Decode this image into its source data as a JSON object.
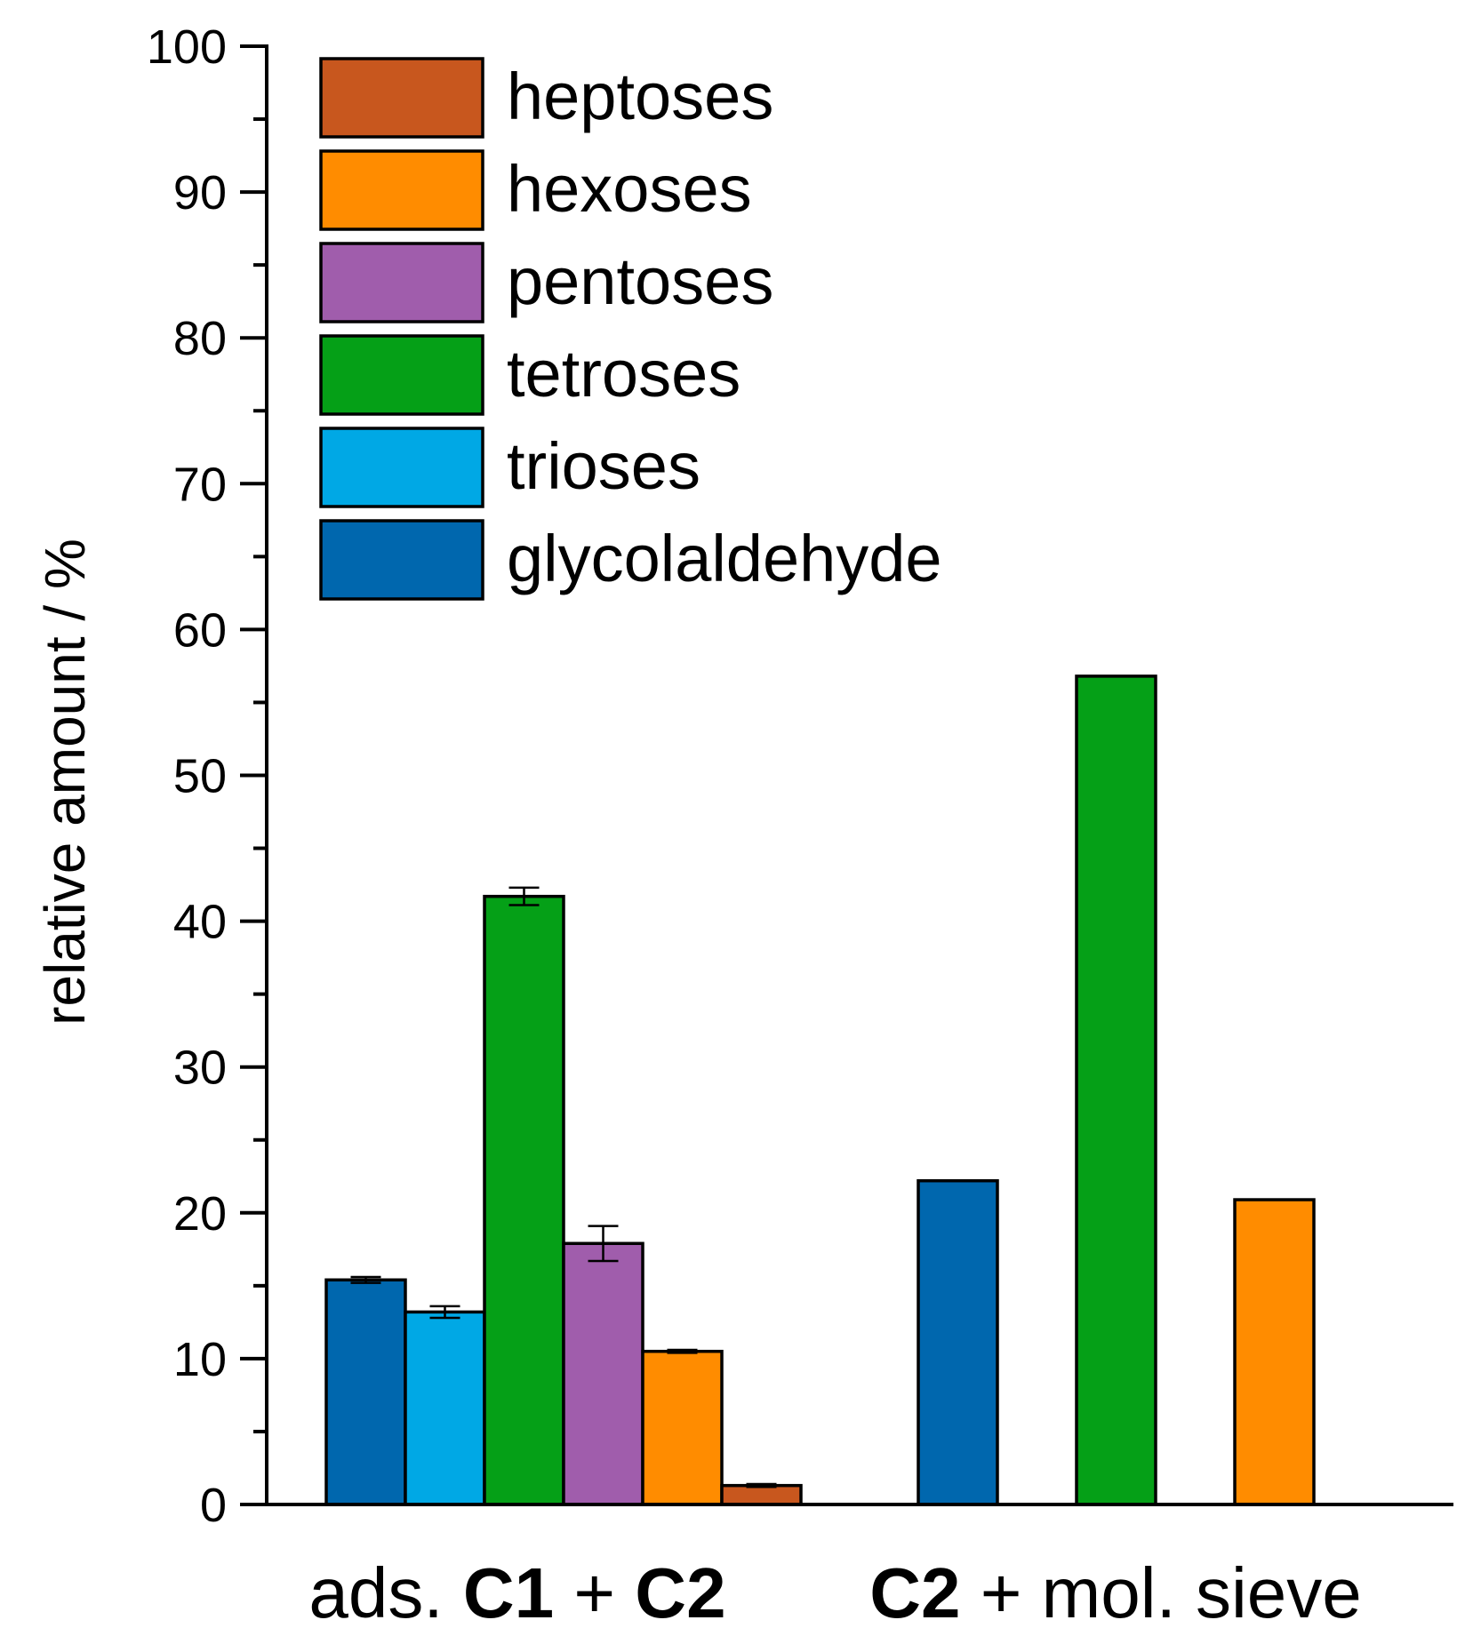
{
  "chart_data": {
    "type": "bar",
    "ylabel": "relative amount / %",
    "ylim": [
      0,
      100
    ],
    "yticks": [
      0,
      10,
      20,
      30,
      40,
      50,
      60,
      70,
      80,
      90,
      100
    ],
    "groups": [
      {
        "label_parts": [
          {
            "text": "ads. ",
            "bold": false
          },
          {
            "text": "C1",
            "bold": true
          },
          {
            "text": " + ",
            "bold": false
          },
          {
            "text": "C2",
            "bold": true
          }
        ],
        "bars": [
          {
            "series": "glycolaldehyde",
            "value": 15.4,
            "error": 0.2
          },
          {
            "series": "trioses",
            "value": 13.2,
            "error": 0.4
          },
          {
            "series": "tetroses",
            "value": 41.7,
            "error": 0.6
          },
          {
            "series": "pentoses",
            "value": 17.9,
            "error": 1.2
          },
          {
            "series": "hexoses",
            "value": 10.5,
            "error": 0.1
          },
          {
            "series": "heptoses",
            "value": 1.3,
            "error": 0.1
          }
        ]
      },
      {
        "label_parts": [
          {
            "text": "C2",
            "bold": true
          },
          {
            "text": " + mol. sieve",
            "bold": false
          }
        ],
        "bars": [
          {
            "series": "glycolaldehyde",
            "value": 22.2,
            "error": 0
          },
          {
            "series": "tetroses",
            "value": 56.8,
            "error": 0
          },
          {
            "series": "hexoses",
            "value": 20.9,
            "error": 0
          }
        ]
      }
    ],
    "legend": [
      {
        "name": "heptoses",
        "color": "#c8571e"
      },
      {
        "name": "hexoses",
        "color": "#ff8c00"
      },
      {
        "name": "pentoses",
        "color": "#a05dac"
      },
      {
        "name": "tetroses",
        "color": "#05a017"
      },
      {
        "name": "trioses",
        "color": "#00a8e5"
      },
      {
        "name": "glycolaldehyde",
        "color": "#0067ae"
      }
    ],
    "legend_position": "top-left"
  }
}
